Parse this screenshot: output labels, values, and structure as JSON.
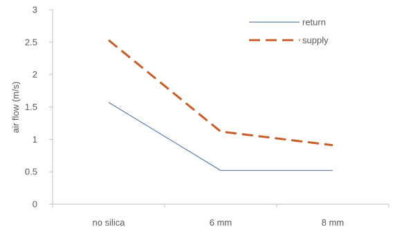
{
  "chart_data": {
    "type": "line",
    "categories": [
      "no silica",
      "6 mm",
      "8 mm"
    ],
    "series": [
      {
        "name": "return",
        "values": [
          1.57,
          0.52,
          0.52
        ],
        "color": "#5b7da8",
        "style": "solid"
      },
      {
        "name": "supply",
        "values": [
          2.53,
          1.12,
          0.91
        ],
        "color": "#c65d28",
        "style": "dashed"
      }
    ],
    "ylabel": "air flow (m/s)",
    "ylim": [
      0,
      3
    ],
    "yticks": [
      "0",
      "0.5",
      "1",
      "1.5",
      "2",
      "2.5",
      "3"
    ],
    "grid": false,
    "legend_position": "top-right"
  }
}
